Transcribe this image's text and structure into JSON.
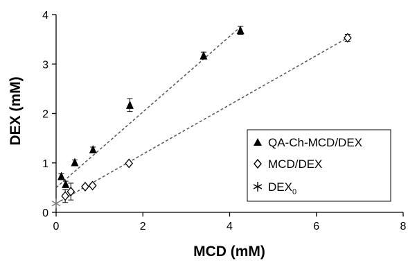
{
  "chart_data": {
    "type": "scatter",
    "xlabel": "MCD (mM)",
    "ylabel": "DEX (mM)",
    "xlim": [
      0,
      8
    ],
    "ylim": [
      0,
      4
    ],
    "xticks": [
      "0",
      "2",
      "4",
      "6",
      "8"
    ],
    "yticks": [
      "0",
      "1",
      "2",
      "3",
      "4"
    ],
    "grid": false,
    "legend_position": "right",
    "series": [
      {
        "name": "QA-Ch-MCD/DEX",
        "marker": "filled-triangle",
        "color": "#000000",
        "points": [
          {
            "x": 0.12,
            "y": 0.73,
            "err": 0.05
          },
          {
            "x": 0.22,
            "y": 0.57,
            "err": 0.06
          },
          {
            "x": 0.43,
            "y": 1.01,
            "err": 0.05
          },
          {
            "x": 0.85,
            "y": 1.27,
            "err": 0.05
          },
          {
            "x": 1.7,
            "y": 2.17,
            "err": 0.13
          },
          {
            "x": 3.4,
            "y": 3.17,
            "err": 0.07
          },
          {
            "x": 4.25,
            "y": 3.68,
            "err": 0.08
          }
        ],
        "fit_line": {
          "x": [
            0.0,
            4.25
          ],
          "y": [
            0.5,
            3.75
          ]
        }
      },
      {
        "name": "MCD/DEX",
        "marker": "open-diamond",
        "color": "#000000",
        "points": [
          {
            "x": 0.21,
            "y": 0.33,
            "err": 0.13
          },
          {
            "x": 0.34,
            "y": 0.42,
            "err": 0.17
          },
          {
            "x": 0.67,
            "y": 0.52,
            "err": 0.03
          },
          {
            "x": 0.84,
            "y": 0.54,
            "err": 0.03
          },
          {
            "x": 1.68,
            "y": 0.99,
            "err": 0.02
          },
          {
            "x": 6.72,
            "y": 3.53,
            "err": 0.07
          }
        ],
        "fit_line": {
          "x": [
            0.0,
            6.72
          ],
          "y": [
            0.18,
            3.53
          ]
        }
      },
      {
        "name": "DEX₀",
        "marker": "asterisk",
        "color": "#777777",
        "points": [
          {
            "x": 0.0,
            "y": 0.18,
            "err": 0
          }
        ]
      }
    ],
    "fit_line_color": "#555555"
  },
  "legend": {
    "items": [
      {
        "label": "QA-Ch-MCD/DEX"
      },
      {
        "label": "MCD/DEX"
      },
      {
        "label": "DEX",
        "subscript": "0"
      }
    ]
  }
}
